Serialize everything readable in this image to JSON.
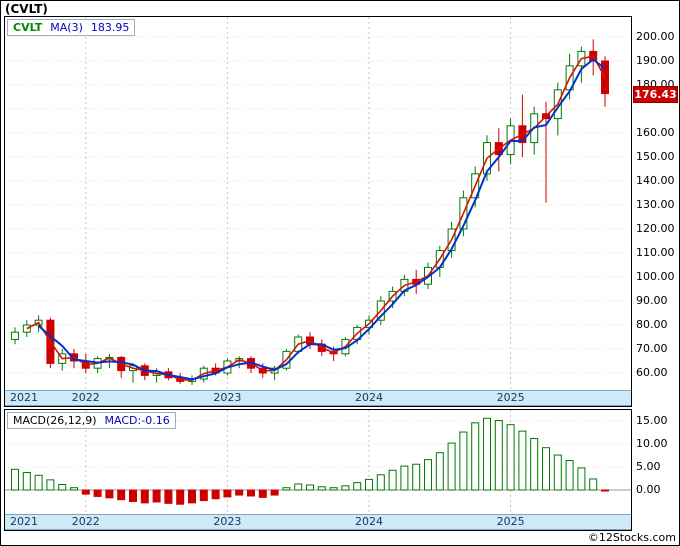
{
  "header": {
    "title": "(CVLT)"
  },
  "main_chart": {
    "legend": {
      "symbol": "CVLT",
      "ma_label": "MA(3)",
      "ma_value": "183.95"
    },
    "price_axis": {
      "labels": [
        "200.00",
        "190.00",
        "180.00",
        "160.00",
        "150.00",
        "140.00",
        "130.00",
        "120.00",
        "110.00",
        "100.00",
        "90.00",
        "80.00",
        "70.00",
        "60.00"
      ],
      "current_price": "176.43"
    },
    "x_axis_years": [
      "2021",
      "2022",
      "2023",
      "2024",
      "2025"
    ]
  },
  "macd_panel": {
    "label": "MACD(26,12,9)",
    "value_label": "MACD:-0.16",
    "axis_labels": [
      "15.00",
      "10.00",
      "5.00",
      "0.00"
    ]
  },
  "footer": {
    "credit": "©12Stocks.com"
  },
  "colors": {
    "up": "#007a00",
    "down": "#cc0000",
    "ma_fast": "#dd1100",
    "ma_slow": "#0033cc",
    "band_bg": "#cfe9f6",
    "band_text": "#16365c",
    "current_price_bg": "#cc0000",
    "legend_green": "#008800",
    "legend_blue": "#0000bb"
  },
  "chart_data": [
    {
      "type": "candlestick",
      "name": "CVLT monthly price with moving averages",
      "y_range": [
        55,
        205
      ],
      "current_price": 176.43,
      "overlays": [
        {
          "name": "MA(3)",
          "color": "#0033cc",
          "last_value": 183.95
        },
        {
          "name": "MA-fast",
          "color": "#dd1100"
        }
      ],
      "months": [
        "2021-07",
        "2021-08",
        "2021-09",
        "2021-10",
        "2021-11",
        "2021-12",
        "2022-01",
        "2022-02",
        "2022-03",
        "2022-04",
        "2022-05",
        "2022-06",
        "2022-07",
        "2022-08",
        "2022-09",
        "2022-10",
        "2022-11",
        "2022-12",
        "2023-01",
        "2023-02",
        "2023-03",
        "2023-04",
        "2023-05",
        "2023-06",
        "2023-07",
        "2023-08",
        "2023-09",
        "2023-10",
        "2023-11",
        "2023-12",
        "2024-01",
        "2024-02",
        "2024-03",
        "2024-04",
        "2024-05",
        "2024-06",
        "2024-07",
        "2024-08",
        "2024-09",
        "2024-10",
        "2024-11",
        "2024-12",
        "2025-01",
        "2025-02",
        "2025-03",
        "2025-04",
        "2025-05",
        "2025-06",
        "2025-07",
        "2025-08",
        "2025-09"
      ],
      "ohlc": [
        [
          74,
          79,
          72,
          77
        ],
        [
          77,
          82,
          75,
          80
        ],
        [
          80,
          84,
          77,
          82
        ],
        [
          82,
          83,
          62,
          64
        ],
        [
          64,
          70,
          61,
          68
        ],
        [
          68,
          70,
          62,
          65
        ],
        [
          65,
          68,
          60,
          62
        ],
        [
          62,
          67,
          60,
          66
        ],
        [
          66,
          68,
          62,
          66.5
        ],
        [
          66.5,
          67,
          58,
          61
        ],
        [
          61,
          64,
          56,
          63
        ],
        [
          63,
          64,
          57,
          59
        ],
        [
          59,
          62,
          56,
          60.5
        ],
        [
          60.5,
          62,
          57,
          58
        ],
        [
          58,
          60,
          55.5,
          56.5
        ],
        [
          56.5,
          59,
          55,
          57.5
        ],
        [
          57.5,
          63,
          56,
          62
        ],
        [
          62,
          64,
          59,
          60
        ],
        [
          60,
          66,
          59,
          65
        ],
        [
          65,
          67,
          62,
          66
        ],
        [
          66,
          67,
          60,
          62
        ],
        [
          62,
          64,
          58,
          60
        ],
        [
          60,
          63,
          57,
          62
        ],
        [
          62,
          70,
          61,
          69
        ],
        [
          69,
          76,
          68,
          75
        ],
        [
          75,
          77,
          70,
          72
        ],
        [
          72,
          74,
          67,
          69
        ],
        [
          69,
          71,
          65,
          68
        ],
        [
          68,
          75,
          67,
          74
        ],
        [
          74,
          80,
          72,
          79
        ],
        [
          79,
          84,
          76,
          82
        ],
        [
          82,
          92,
          80,
          90
        ],
        [
          90,
          96,
          87,
          94
        ],
        [
          94,
          101,
          92,
          99
        ],
        [
          99,
          103,
          93,
          97
        ],
        [
          97,
          106,
          95,
          104
        ],
        [
          104,
          113,
          100,
          111
        ],
        [
          111,
          123,
          108,
          120
        ],
        [
          120,
          136,
          117,
          133
        ],
        [
          133,
          146,
          129,
          143
        ],
        [
          143,
          159,
          140,
          156
        ],
        [
          156,
          162,
          144,
          151
        ],
        [
          151,
          166,
          147,
          163
        ],
        [
          163,
          176,
          150,
          156
        ],
        [
          156,
          171,
          151,
          168
        ],
        [
          168,
          173,
          131,
          166
        ],
        [
          166,
          181,
          159,
          178
        ],
        [
          178,
          193,
          174,
          188
        ],
        [
          188,
          196,
          181,
          194
        ],
        [
          194,
          199,
          184,
          190
        ],
        [
          190,
          192,
          171,
          176.43
        ]
      ]
    },
    {
      "type": "bar",
      "name": "MACD(26,12,9) histogram",
      "categories_note": "same months as price chart",
      "y_range": [
        -4,
        17
      ],
      "last_value": -0.16,
      "values": [
        4.5,
        3.8,
        3.2,
        2.2,
        1.2,
        0.5,
        -0.9,
        -1.4,
        -1.7,
        -2.1,
        -2.5,
        -2.8,
        -2.6,
        -2.9,
        -3.1,
        -2.8,
        -2.3,
        -1.9,
        -1.5,
        -1.1,
        -1.3,
        -1.6,
        -1.1,
        0.5,
        1.3,
        1.1,
        0.7,
        0.5,
        0.9,
        1.6,
        2.3,
        3.3,
        4.3,
        5.2,
        5.6,
        6.6,
        8.1,
        10.2,
        12.6,
        14.6,
        15.6,
        15.1,
        14.2,
        12.8,
        11.2,
        9.2,
        7.6,
        6.4,
        4.8,
        2.4,
        -0.16
      ]
    }
  ]
}
